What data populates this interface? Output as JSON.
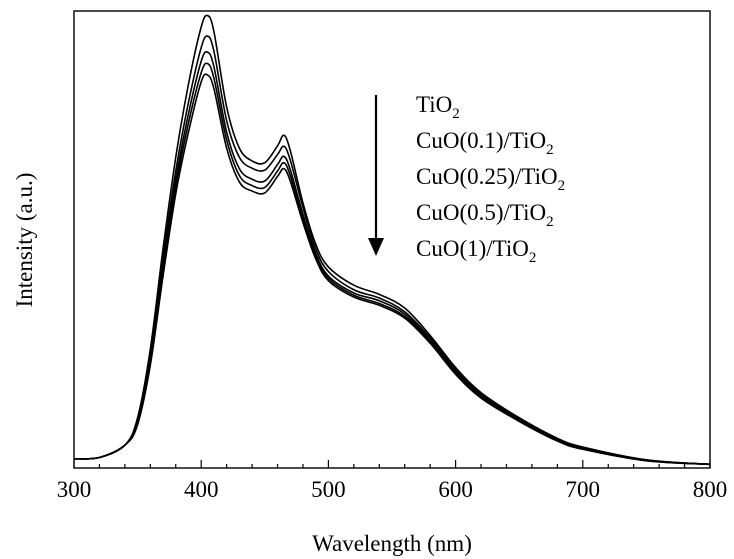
{
  "chart_data": {
    "type": "line",
    "title": "",
    "xlabel": "Wavelength (nm)",
    "ylabel": "Intensity (a.u.)",
    "xlim": [
      300,
      800
    ],
    "ylim": [
      0,
      1.0
    ],
    "x_ticks": [
      "300",
      "400",
      "500",
      "600",
      "700",
      "800"
    ],
    "y_ticks_labeled": false,
    "grid": false,
    "legend_position": "top-right",
    "legend_arrow": "down",
    "x": [
      300,
      320,
      340,
      350,
      360,
      370,
      380,
      390,
      400,
      405,
      410,
      420,
      430,
      440,
      450,
      460,
      465,
      470,
      480,
      490,
      500,
      520,
      540,
      560,
      580,
      600,
      620,
      650,
      680,
      700,
      750,
      800
    ],
    "series": [
      {
        "name": "TiO2",
        "name_base": "TiO",
        "name_sub": "2",
        "name_tail": "",
        "values": [
          0.02,
          0.023,
          0.05,
          0.11,
          0.26,
          0.48,
          0.68,
          0.84,
          0.965,
          0.99,
          0.955,
          0.79,
          0.7,
          0.672,
          0.668,
          0.705,
          0.728,
          0.695,
          0.58,
          0.49,
          0.44,
          0.4,
          0.38,
          0.35,
          0.29,
          0.22,
          0.165,
          0.11,
          0.065,
          0.046,
          0.018,
          0.008
        ]
      },
      {
        "name": "CuO(0.1)/TiO2",
        "name_base": "CuO(0.1)/TiO",
        "name_sub": "2",
        "name_tail": "",
        "values": [
          0.02,
          0.023,
          0.05,
          0.105,
          0.25,
          0.46,
          0.65,
          0.8,
          0.92,
          0.945,
          0.912,
          0.76,
          0.68,
          0.656,
          0.652,
          0.686,
          0.704,
          0.674,
          0.57,
          0.48,
          0.43,
          0.39,
          0.372,
          0.342,
          0.285,
          0.215,
          0.161,
          0.108,
          0.063,
          0.044,
          0.017,
          0.008
        ]
      },
      {
        "name": "CuO(0.25)/TiO2",
        "name_base": "CuO(0.25)/TiO",
        "name_sub": "2",
        "name_tail": "",
        "values": [
          0.02,
          0.023,
          0.05,
          0.1,
          0.24,
          0.44,
          0.63,
          0.775,
          0.89,
          0.91,
          0.878,
          0.735,
          0.655,
          0.632,
          0.628,
          0.664,
          0.682,
          0.653,
          0.555,
          0.47,
          0.42,
          0.383,
          0.366,
          0.337,
          0.28,
          0.212,
          0.158,
          0.106,
          0.061,
          0.043,
          0.017,
          0.008
        ]
      },
      {
        "name": "CuO(0.5)/TiO2",
        "name_base": "CuO(0.5)/TiO",
        "name_sub": "2",
        "name_tail": "",
        "values": [
          0.02,
          0.023,
          0.05,
          0.1,
          0.235,
          0.43,
          0.615,
          0.755,
          0.865,
          0.885,
          0.853,
          0.718,
          0.64,
          0.618,
          0.614,
          0.65,
          0.668,
          0.64,
          0.545,
          0.465,
          0.415,
          0.378,
          0.36,
          0.332,
          0.276,
          0.208,
          0.156,
          0.104,
          0.06,
          0.042,
          0.016,
          0.008
        ]
      },
      {
        "name": "CuO(1)/TiO2",
        "name_base": "CuO(1)/TiO",
        "name_sub": "2",
        "name_tail": "",
        "values": [
          0.02,
          0.023,
          0.05,
          0.095,
          0.225,
          0.42,
          0.6,
          0.735,
          0.845,
          0.86,
          0.83,
          0.7,
          0.626,
          0.606,
          0.602,
          0.638,
          0.655,
          0.628,
          0.537,
          0.458,
          0.41,
          0.374,
          0.356,
          0.328,
          0.273,
          0.205,
          0.153,
          0.102,
          0.059,
          0.041,
          0.016,
          0.008
        ]
      }
    ]
  }
}
